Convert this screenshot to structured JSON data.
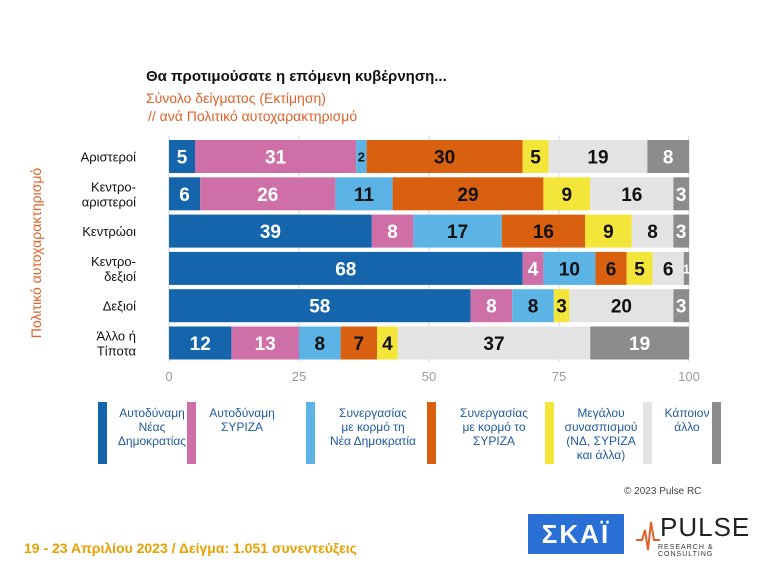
{
  "header": {
    "title": "Θα προτιμούσατε η επόμενη κυβέρνηση...",
    "subtitle": "Σύνολο δείγματος  (Εκτίμηση)",
    "subtitle2": " // ανά Πολιτικό αυτοχαρακτηρισμό"
  },
  "chart_data": {
    "type": "bar",
    "orientation": "horizontal",
    "stacked": true,
    "ylabel": "Πολιτικό αυτοχαρακτηρισμό",
    "categories": [
      "Αριστεροί",
      "Κεντρο-\nαριστεροί",
      "Κεντρώοι",
      "Κεντρο-\nδεξιοί",
      "Δεξιοί",
      "Άλλο ή\nΤίποτα"
    ],
    "xlim": [
      0,
      100
    ],
    "xticks": [
      0,
      25,
      50,
      75,
      100
    ],
    "grid": true,
    "legend_position": "bottom",
    "series": [
      {
        "name": "Αυτοδύναμη\nΝέας\nΔημοκρατίας",
        "color": "#1565ad",
        "label_color": "#ffffff",
        "values": [
          5,
          6,
          39,
          68,
          58,
          12
        ]
      },
      {
        "name": "Αυτοδύναμη\nΣΥΡΙΖΑ",
        "color": "#cf6fa8",
        "label_color": "#ffffff",
        "values": [
          31,
          26,
          8,
          4,
          8,
          13
        ]
      },
      {
        "name": "Συνεργασίας\nμε κορμό τη\nΝέα Δημοκρατία",
        "color": "#5bb4e5",
        "label_color": "#111111",
        "values": [
          2,
          11,
          17,
          10,
          8,
          8
        ]
      },
      {
        "name": "Συνεργασίας\nμε κορμό το\nΣΥΡΙΖΑ",
        "color": "#d9600f",
        "label_color": "#111111",
        "values": [
          30,
          29,
          16,
          6,
          0,
          7
        ]
      },
      {
        "name": "Μεγάλου\nσυνασπισμού\n(ΝΔ, ΣΥΡΙΖΑ\nκαι άλλα)",
        "color": "#f3e539",
        "label_color": "#111111",
        "values": [
          5,
          9,
          9,
          5,
          3,
          4
        ]
      },
      {
        "name": "Κάποιον\nάλλο",
        "color": "#e3e3e3",
        "label_color": "#111111",
        "values": [
          19,
          16,
          8,
          6,
          20,
          37
        ]
      },
      {
        "name": "",
        "color": "#8c8c8c",
        "label_color": "#ffffff",
        "values": [
          8,
          3,
          3,
          1,
          3,
          19
        ]
      }
    ]
  },
  "watermark": "PULSE",
  "copyright": "© 2023 Pulse RC",
  "footer": "19 - 23  Απριλίου  2023  /  Δείγμα:  1.051 συνεντεύξεις",
  "logos": {
    "skai": "ΣΚΑΪ",
    "pulse": "PULSE",
    "pulse_tagline": "RESEARCH & CONSULTING"
  }
}
